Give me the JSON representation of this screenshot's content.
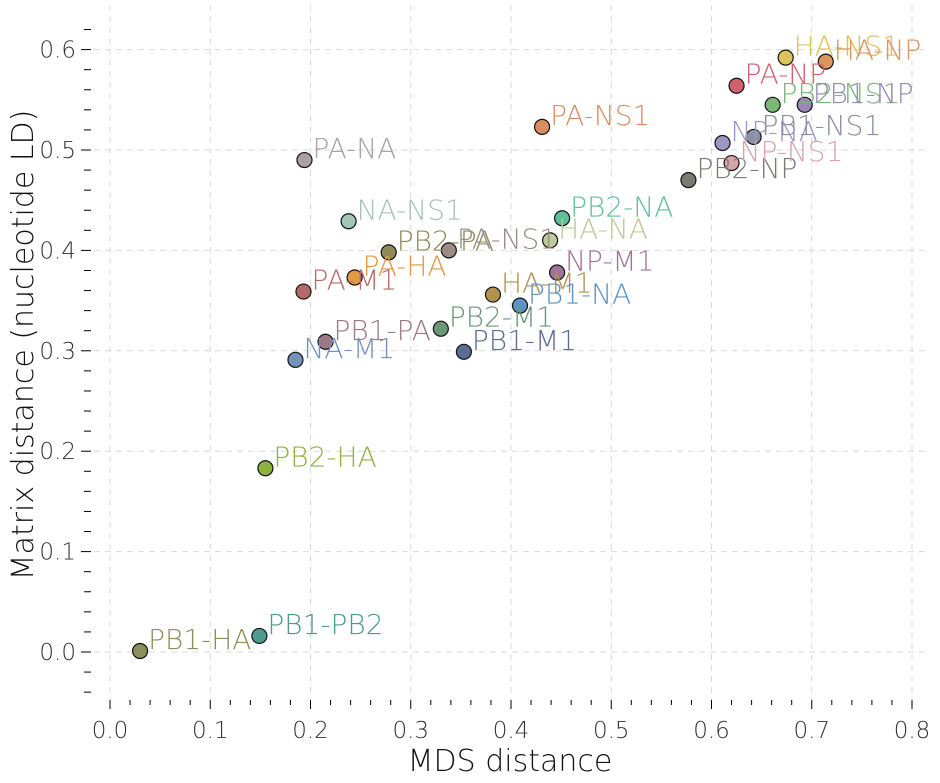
{
  "chart_data": {
    "type": "scatter",
    "xlabel": "MDS distance",
    "ylabel": "Matrix distance (nucleotide LD)",
    "xlim": [
      -0.02,
      0.82
    ],
    "ylim": [
      -0.055,
      0.64
    ],
    "xticks": [
      "0.0",
      "0.1",
      "0.2",
      "0.3",
      "0.4",
      "0.5",
      "0.6",
      "0.7",
      "0.8"
    ],
    "yticks": [
      "0.0",
      "0.1",
      "0.2",
      "0.3",
      "0.4",
      "0.5",
      "0.6"
    ],
    "grid": true,
    "points": [
      {
        "label": "PB1-HA",
        "x": 0.03,
        "y": 0.001,
        "color": "#8c8f5a"
      },
      {
        "label": "PB1-PB2",
        "x": 0.149,
        "y": 0.016,
        "color": "#4f9a8e"
      },
      {
        "label": "PB2-HA",
        "x": 0.155,
        "y": 0.183,
        "color": "#8fb23f"
      },
      {
        "label": "NA-M1",
        "x": 0.185,
        "y": 0.291,
        "color": "#7593b8"
      },
      {
        "label": "PA-M1",
        "x": 0.193,
        "y": 0.359,
        "color": "#b56a6a"
      },
      {
        "label": "PA-NA",
        "x": 0.194,
        "y": 0.49,
        "color": "#ada0a0"
      },
      {
        "label": "PB1-PA",
        "x": 0.215,
        "y": 0.309,
        "color": "#9c7a85"
      },
      {
        "label": "NA-NS1",
        "x": 0.238,
        "y": 0.429,
        "color": "#a4c4b6"
      },
      {
        "label": "PA-HA",
        "x": 0.244,
        "y": 0.373,
        "color": "#e09a42"
      },
      {
        "label": "PB2-PA",
        "x": 0.278,
        "y": 0.398,
        "color": "#8f8a5c"
      },
      {
        "label": "PB2-M1",
        "x": 0.33,
        "y": 0.322,
        "color": "#6a9876"
      },
      {
        "label": "PA-NS1",
        "x": 0.338,
        "y": 0.4,
        "color": "#9b8c86"
      },
      {
        "label": "PB1-M1",
        "x": 0.353,
        "y": 0.299,
        "color": "#5c6a96"
      },
      {
        "label": "HA-M1",
        "x": 0.382,
        "y": 0.356,
        "color": "#b0924f"
      },
      {
        "label": "PB1-NA",
        "x": 0.409,
        "y": 0.345,
        "color": "#5b94c4"
      },
      {
        "label": "PA-NS1",
        "x": 0.431,
        "y": 0.523,
        "color": "#d88e62"
      },
      {
        "label": "HA-NA",
        "x": 0.439,
        "y": 0.41,
        "color": "#bccb98"
      },
      {
        "label": "NP-M1",
        "x": 0.446,
        "y": 0.378,
        "color": "#a0749a"
      },
      {
        "label": "PB2-NA",
        "x": 0.451,
        "y": 0.432,
        "color": "#5fbf9a"
      },
      {
        "label": "PB2-NP",
        "x": 0.577,
        "y": 0.47,
        "color": "#7b7b72"
      },
      {
        "label": "NP-NA",
        "x": 0.611,
        "y": 0.507,
        "color": "#9b98c6"
      },
      {
        "label": "NP-NS1",
        "x": 0.62,
        "y": 0.487,
        "color": "#d6a4aa"
      },
      {
        "label": "PA-NP",
        "x": 0.625,
        "y": 0.564,
        "color": "#d1606f"
      },
      {
        "label": "PB1-NS1",
        "x": 0.642,
        "y": 0.513,
        "color": "#8a8fa3"
      },
      {
        "label": "PB2-NS1",
        "x": 0.661,
        "y": 0.545,
        "color": "#7ab878"
      },
      {
        "label": "HA-NS1",
        "x": 0.674,
        "y": 0.592,
        "color": "#dcc45a"
      },
      {
        "label": "PB1-NP",
        "x": 0.693,
        "y": 0.545,
        "color": "#9a87b5"
      },
      {
        "label": "HA-NP",
        "x": 0.714,
        "y": 0.588,
        "color": "#db955e"
      }
    ]
  }
}
